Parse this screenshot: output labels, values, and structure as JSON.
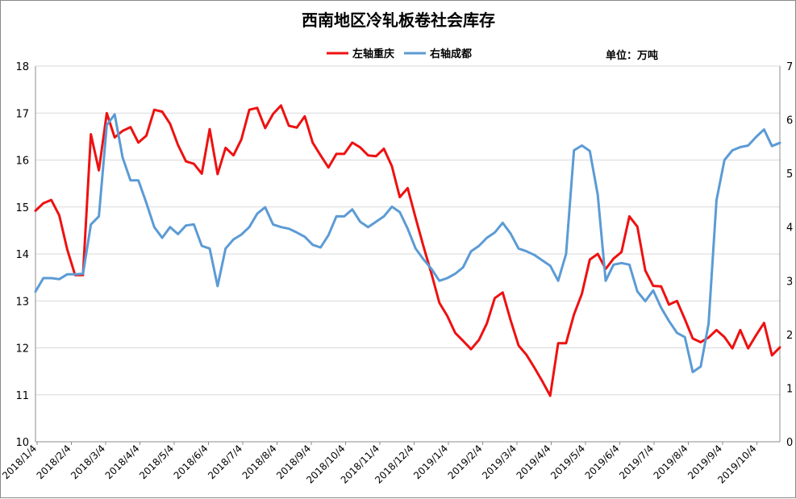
{
  "chart_data": {
    "type": "line",
    "title": "西南地区冷轧板卷社会库存",
    "unit_label": "单位：万吨",
    "y_left": {
      "min": 10,
      "max": 18,
      "ticks": [
        "10",
        "11",
        "12",
        "13",
        "14",
        "15",
        "16",
        "17",
        "18"
      ]
    },
    "y_right": {
      "min": 0,
      "max": 7,
      "ticks": [
        "0",
        "1",
        "2",
        "3",
        "4",
        "5",
        "6",
        "7"
      ]
    },
    "x_labels": [
      "2018/1/4",
      "2018/2/4",
      "2018/3/4",
      "2018/4/4",
      "2018/5/4",
      "2018/6/4",
      "2018/7/4",
      "2018/8/4",
      "2018/9/4",
      "2018/10/4",
      "2018/11/4",
      "2018/12/4",
      "2019/1/4",
      "2019/2/4",
      "2019/3/4",
      "2019/4/4",
      "2019/5/4",
      "2019/6/4",
      "2019/7/4",
      "2019/8/4",
      "2019/9/4",
      "2019/10/4"
    ],
    "grid": "horizontal",
    "legend_position": "top",
    "series": [
      {
        "name": "左轴重庆",
        "axis": "left",
        "color": "#ee1111",
        "values": [
          14.92,
          15.08,
          15.15,
          14.82,
          14.1,
          13.55,
          13.55,
          16.55,
          15.78,
          17.0,
          16.48,
          16.62,
          16.7,
          16.37,
          16.52,
          17.07,
          17.03,
          16.77,
          16.32,
          15.97,
          15.92,
          15.71,
          16.66,
          15.7,
          16.26,
          16.1,
          16.44,
          17.07,
          17.11,
          16.68,
          16.98,
          17.16,
          16.73,
          16.69,
          16.93,
          16.37,
          16.1,
          15.84,
          16.13,
          16.13,
          16.37,
          16.27,
          16.1,
          16.08,
          16.24,
          15.87,
          15.21,
          15.4,
          14.77,
          14.16,
          13.58,
          12.96,
          12.68,
          12.32,
          12.15,
          11.97,
          12.17,
          12.52,
          13.06,
          13.18,
          12.59,
          12.05,
          11.85,
          11.58,
          11.29,
          10.98,
          12.1,
          12.1,
          12.71,
          13.15,
          13.88,
          14.0,
          13.68,
          13.9,
          14.04,
          14.8,
          14.58,
          13.65,
          13.32,
          13.31,
          12.92,
          13.0,
          12.61,
          12.2,
          12.12,
          12.22,
          12.38,
          12.23,
          11.99,
          12.38,
          11.99,
          12.27,
          12.53,
          11.84,
          12.01
        ]
      },
      {
        "name": "右轴成都",
        "axis": "right",
        "color": "#5b9bd5",
        "values": [
          2.8,
          3.05,
          3.05,
          3.03,
          3.12,
          3.12,
          3.13,
          4.05,
          4.2,
          5.9,
          6.1,
          5.3,
          4.87,
          4.87,
          4.45,
          4.0,
          3.8,
          4.0,
          3.87,
          4.03,
          4.05,
          3.65,
          3.6,
          2.9,
          3.6,
          3.77,
          3.86,
          4.0,
          4.25,
          4.37,
          4.05,
          4.0,
          3.97,
          3.9,
          3.82,
          3.67,
          3.62,
          3.85,
          4.2,
          4.2,
          4.33,
          4.1,
          4.0,
          4.1,
          4.2,
          4.38,
          4.28,
          3.97,
          3.6,
          3.4,
          3.22,
          3.0,
          3.05,
          3.13,
          3.25,
          3.55,
          3.65,
          3.8,
          3.9,
          4.08,
          3.88,
          3.6,
          3.55,
          3.48,
          3.38,
          3.28,
          3.0,
          3.5,
          5.43,
          5.52,
          5.42,
          4.6,
          3.0,
          3.3,
          3.33,
          3.3,
          2.8,
          2.62,
          2.82,
          2.5,
          2.25,
          2.03,
          1.95,
          1.3,
          1.4,
          2.2,
          4.5,
          5.25,
          5.43,
          5.49,
          5.52,
          5.68,
          5.82,
          5.51,
          5.57
        ]
      }
    ]
  }
}
